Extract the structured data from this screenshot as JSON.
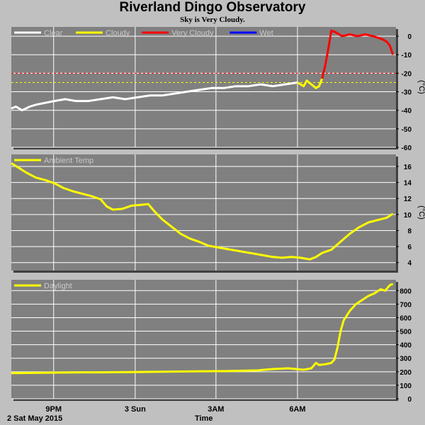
{
  "header": {
    "title": "Riverland Dingo Observatory",
    "subtitle": "Sky is Very Cloudy."
  },
  "footer": {
    "date": "2 Sat May 2015",
    "xlabel": "Time"
  },
  "x_ticks": [
    "9PM",
    "3 Sun",
    "3AM",
    "6AM"
  ],
  "colors": {
    "background": "#c0c0c0",
    "plot_bg": "#808080",
    "grid": "#ffffff",
    "clear": "#ffffff",
    "cloudy": "#ffff00",
    "very_cloudy": "#ff0000",
    "wet": "#0000ff"
  },
  "chart_data": [
    {
      "type": "line",
      "title": "",
      "ylabel": "(°C)",
      "ylim": [
        -60,
        5
      ],
      "yticks": [
        0,
        -10,
        -20,
        -30,
        -40,
        -50,
        -60
      ],
      "grid": true,
      "legend_placement": "top-left",
      "legend": [
        "Clear",
        "Cloudy",
        "Very Cloudy",
        "Wet"
      ],
      "thresholds": [
        {
          "value": -20,
          "color": "#ff0000",
          "style": "dashed"
        },
        {
          "value": -25,
          "color": "#ffff00",
          "style": "dashed"
        }
      ],
      "series": [
        {
          "name": "Clear",
          "color": "#ffffff",
          "points": [
            [
              0,
              -39
            ],
            [
              0.3,
              -38
            ],
            [
              0.7,
              -40
            ],
            [
              1.2,
              -38
            ],
            [
              1.6,
              -37
            ],
            [
              2.2,
              -36
            ],
            [
              2.8,
              -35
            ],
            [
              3.5,
              -34
            ],
            [
              4.2,
              -35
            ],
            [
              5,
              -35
            ],
            [
              5.8,
              -34
            ],
            [
              6.6,
              -33
            ],
            [
              7.4,
              -34
            ],
            [
              8.2,
              -33
            ],
            [
              9,
              -32
            ],
            [
              9.8,
              -32
            ],
            [
              10.6,
              -31
            ],
            [
              11.4,
              -30
            ],
            [
              12.2,
              -29
            ],
            [
              13,
              -28
            ],
            [
              13.8,
              -28
            ],
            [
              14.6,
              -27
            ],
            [
              15.4,
              -27
            ],
            [
              16.2,
              -26
            ],
            [
              17,
              -27
            ],
            [
              17.8,
              -26
            ],
            [
              18.6,
              -25
            ]
          ]
        },
        {
          "name": "Cloudy",
          "color": "#ffff00",
          "points": [
            [
              18.6,
              -25
            ],
            [
              19.0,
              -27
            ],
            [
              19.2,
              -24
            ],
            [
              19.5,
              -26
            ],
            [
              19.8,
              -28
            ],
            [
              20.0,
              -27
            ],
            [
              20.2,
              -23
            ]
          ]
        },
        {
          "name": "Very Cloudy",
          "color": "#ff0000",
          "points": [
            [
              20.2,
              -23
            ],
            [
              20.4,
              -16
            ],
            [
              20.6,
              -7
            ],
            [
              20.8,
              3
            ],
            [
              21.1,
              2
            ],
            [
              21.5,
              0
            ],
            [
              22,
              1
            ],
            [
              22.5,
              0
            ],
            [
              23,
              1
            ],
            [
              23.5,
              0
            ],
            [
              23.9,
              -1
            ],
            [
              24.2,
              -2
            ],
            [
              24.4,
              -3
            ],
            [
              24.6,
              -5
            ],
            [
              24.8,
              -10
            ]
          ]
        },
        {
          "name": "Wet",
          "color": "#0000ff",
          "points": []
        }
      ]
    },
    {
      "type": "line",
      "title": "",
      "ylabel": "(°C)",
      "ylim": [
        3,
        17.5
      ],
      "yticks": [
        4,
        6,
        8,
        10,
        12,
        14,
        16
      ],
      "grid": true,
      "legend_placement": "top-left",
      "legend": [
        "Ambient Temp"
      ],
      "series": [
        {
          "name": "Ambient Temp",
          "color": "#ffff00",
          "points": [
            [
              0,
              16.4
            ],
            [
              0.5,
              15.8
            ],
            [
              1.0,
              15.2
            ],
            [
              1.6,
              14.6
            ],
            [
              2.2,
              14.3
            ],
            [
              2.8,
              13.9
            ],
            [
              3.4,
              13.3
            ],
            [
              4.0,
              12.9
            ],
            [
              4.6,
              12.6
            ],
            [
              5.2,
              12.3
            ],
            [
              5.8,
              11.9
            ],
            [
              6.2,
              11.0
            ],
            [
              6.6,
              10.6
            ],
            [
              7.2,
              10.7
            ],
            [
              7.8,
              11.1
            ],
            [
              8.4,
              11.2
            ],
            [
              8.9,
              11.3
            ],
            [
              9.3,
              10.4
            ],
            [
              9.8,
              9.4
            ],
            [
              10.4,
              8.5
            ],
            [
              11.0,
              7.6
            ],
            [
              11.6,
              7.0
            ],
            [
              12.2,
              6.6
            ],
            [
              12.8,
              6.1
            ],
            [
              13.4,
              5.9
            ],
            [
              14.0,
              5.7
            ],
            [
              14.6,
              5.5
            ],
            [
              15.2,
              5.3
            ],
            [
              15.8,
              5.1
            ],
            [
              16.4,
              4.9
            ],
            [
              17.0,
              4.7
            ],
            [
              17.6,
              4.6
            ],
            [
              18.2,
              4.7
            ],
            [
              18.8,
              4.6
            ],
            [
              19.4,
              4.4
            ],
            [
              19.8,
              4.7
            ],
            [
              20.2,
              5.2
            ],
            [
              20.8,
              5.6
            ],
            [
              21.4,
              6.6
            ],
            [
              22.0,
              7.6
            ],
            [
              22.6,
              8.4
            ],
            [
              23.2,
              9.0
            ],
            [
              23.8,
              9.3
            ],
            [
              24.4,
              9.6
            ],
            [
              24.8,
              10.1
            ]
          ]
        }
      ]
    },
    {
      "type": "line",
      "title": "",
      "ylabel": "",
      "ylim": [
        0,
        880
      ],
      "yticks": [
        0,
        100,
        200,
        300,
        400,
        500,
        600,
        700,
        800
      ],
      "grid": true,
      "legend_placement": "top-left",
      "legend": [
        "Daylight"
      ],
      "series": [
        {
          "name": "Daylight",
          "color": "#ffff00",
          "points": [
            [
              0,
              190
            ],
            [
              2,
              192
            ],
            [
              4,
              195
            ],
            [
              6,
              196
            ],
            [
              8,
              198
            ],
            [
              10,
              200
            ],
            [
              12,
              203
            ],
            [
              14,
              205
            ],
            [
              16,
              210
            ],
            [
              17,
              220
            ],
            [
              18,
              225
            ],
            [
              19,
              215
            ],
            [
              19.5,
              225
            ],
            [
              19.8,
              265
            ],
            [
              20.0,
              250
            ],
            [
              20.4,
              255
            ],
            [
              20.8,
              265
            ],
            [
              21.0,
              290
            ],
            [
              21.2,
              380
            ],
            [
              21.4,
              500
            ],
            [
              21.6,
              580
            ],
            [
              22.0,
              650
            ],
            [
              22.4,
              700
            ],
            [
              22.8,
              730
            ],
            [
              23.2,
              760
            ],
            [
              23.6,
              780
            ],
            [
              24.0,
              810
            ],
            [
              24.3,
              800
            ],
            [
              24.6,
              840
            ],
            [
              24.8,
              850
            ]
          ]
        }
      ]
    }
  ]
}
